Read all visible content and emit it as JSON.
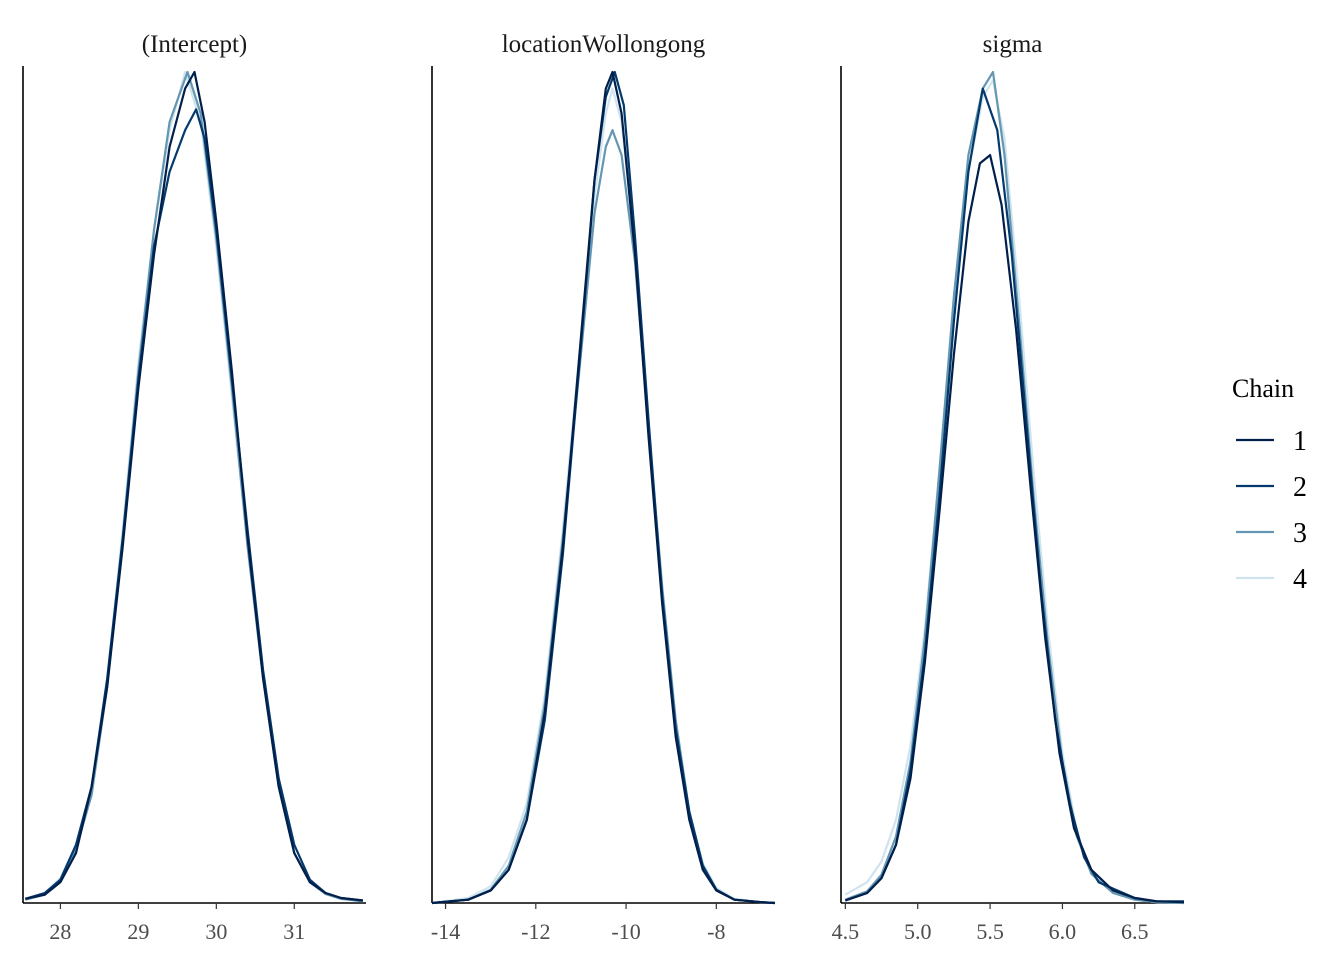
{
  "chart_data": {
    "type": "line",
    "legend": {
      "title": "Chain",
      "position": "right",
      "entries": [
        "1",
        "2",
        "3",
        "4"
      ]
    },
    "colors": [
      "#011f4b",
      "#03396c",
      "#6497b1",
      "#d0e4ef"
    ],
    "grid": false,
    "panels": [
      {
        "title": "(Intercept)",
        "xlim": [
          27.52,
          31.92
        ],
        "ticks": [
          28,
          29,
          30,
          31
        ],
        "tick_labels": [
          "28",
          "29",
          "30",
          "31"
        ],
        "series": [
          {
            "name": "1",
            "x": [
              27.55,
              27.8,
              28.0,
              28.2,
              28.4,
              28.6,
              28.8,
              29.0,
              29.2,
              29.4,
              29.6,
              29.72,
              29.85,
              30.0,
              30.2,
              30.4,
              30.6,
              30.8,
              31.0,
              31.2,
              31.4,
              31.6,
              31.88
            ],
            "y": [
              0.005,
              0.01,
              0.025,
              0.06,
              0.14,
              0.26,
              0.43,
              0.62,
              0.78,
              0.91,
              0.98,
              1.0,
              0.94,
              0.82,
              0.64,
              0.44,
              0.27,
              0.14,
              0.06,
              0.025,
              0.012,
              0.006,
              0.003
            ]
          },
          {
            "name": "2",
            "x": [
              27.55,
              27.8,
              28.0,
              28.2,
              28.4,
              28.6,
              28.8,
              29.0,
              29.2,
              29.4,
              29.6,
              29.74,
              29.85,
              30.0,
              30.2,
              30.4,
              30.6,
              30.8,
              31.0,
              31.2,
              31.4,
              31.6,
              31.88
            ],
            "y": [
              0.005,
              0.012,
              0.028,
              0.07,
              0.14,
              0.27,
              0.44,
              0.63,
              0.79,
              0.88,
              0.93,
              0.955,
              0.92,
              0.81,
              0.63,
              0.45,
              0.28,
              0.15,
              0.07,
              0.028,
              0.012,
              0.006,
              0.003
            ]
          },
          {
            "name": "3",
            "x": [
              27.55,
              27.8,
              28.0,
              28.2,
              28.4,
              28.6,
              28.8,
              29.0,
              29.2,
              29.4,
              29.63,
              29.8,
              30.0,
              30.2,
              30.4,
              30.6,
              30.8,
              31.0,
              31.2,
              31.4,
              31.6,
              31.88
            ],
            "y": [
              0.004,
              0.01,
              0.027,
              0.065,
              0.13,
              0.26,
              0.44,
              0.64,
              0.81,
              0.94,
              1.0,
              0.95,
              0.8,
              0.62,
              0.43,
              0.27,
              0.14,
              0.06,
              0.025,
              0.011,
              0.005,
              0.002
            ]
          },
          {
            "name": "4",
            "x": [
              27.55,
              27.8,
              28.0,
              28.2,
              28.4,
              28.6,
              28.8,
              29.0,
              29.2,
              29.4,
              29.6,
              29.8,
              30.0,
              30.2,
              30.4,
              30.6,
              30.8,
              31.0,
              31.2,
              31.4,
              31.6,
              31.88
            ],
            "y": [
              0.005,
              0.012,
              0.03,
              0.07,
              0.14,
              0.27,
              0.45,
              0.65,
              0.81,
              0.93,
              1.0,
              0.94,
              0.79,
              0.61,
              0.43,
              0.27,
              0.14,
              0.06,
              0.025,
              0.011,
              0.005,
              0.002
            ]
          }
        ]
      },
      {
        "title": "locationWollongong",
        "xlim": [
          -14.3,
          -6.7
        ],
        "ticks": [
          -14,
          -12,
          -10,
          -8
        ],
        "tick_labels": [
          "-14",
          "-12",
          "-10",
          "-8"
        ],
        "series": [
          {
            "name": "1",
            "x": [
              -14.3,
              -13.5,
              -13.0,
              -12.6,
              -12.2,
              -11.8,
              -11.4,
              -11.0,
              -10.7,
              -10.45,
              -10.3,
              -10.1,
              -9.8,
              -9.5,
              -9.2,
              -8.9,
              -8.6,
              -8.3,
              -8.0,
              -7.6,
              -7.0,
              -6.7
            ],
            "y": [
              0.0,
              0.004,
              0.015,
              0.04,
              0.1,
              0.23,
              0.43,
              0.68,
              0.87,
              0.98,
              1.0,
              0.95,
              0.78,
              0.56,
              0.36,
              0.2,
              0.1,
              0.04,
              0.015,
              0.004,
              0.001,
              0.0
            ]
          },
          {
            "name": "2",
            "x": [
              -14.3,
              -13.5,
              -13.0,
              -12.6,
              -12.2,
              -11.8,
              -11.4,
              -11.0,
              -10.7,
              -10.45,
              -10.25,
              -10.05,
              -9.8,
              -9.5,
              -9.2,
              -8.9,
              -8.6,
              -8.3,
              -8.0,
              -7.6,
              -7.0,
              -6.7
            ],
            "y": [
              0.0,
              0.004,
              0.015,
              0.04,
              0.1,
              0.22,
              0.42,
              0.67,
              0.87,
              0.97,
              1.0,
              0.96,
              0.8,
              0.58,
              0.37,
              0.21,
              0.11,
              0.045,
              0.016,
              0.004,
              0.001,
              0.0
            ]
          },
          {
            "name": "3",
            "x": [
              -14.3,
              -13.5,
              -13.0,
              -12.6,
              -12.2,
              -11.8,
              -11.4,
              -11.0,
              -10.7,
              -10.45,
              -10.3,
              -10.1,
              -9.8,
              -9.5,
              -9.2,
              -8.9,
              -8.6,
              -8.3,
              -8.0,
              -7.6,
              -7.0,
              -6.7
            ],
            "y": [
              0.0,
              0.004,
              0.016,
              0.045,
              0.11,
              0.24,
              0.44,
              0.66,
              0.83,
              0.91,
              0.93,
              0.9,
              0.77,
              0.57,
              0.38,
              0.22,
              0.11,
              0.045,
              0.016,
              0.004,
              0.001,
              0.0
            ]
          },
          {
            "name": "4",
            "x": [
              -14.3,
              -13.5,
              -13.0,
              -12.6,
              -12.2,
              -11.8,
              -11.4,
              -11.0,
              -10.7,
              -10.45,
              -10.3,
              -10.1,
              -9.8,
              -9.5,
              -9.2,
              -8.9,
              -8.6,
              -8.3,
              -8.0,
              -7.6,
              -7.0,
              -6.7
            ],
            "y": [
              0.0,
              0.006,
              0.02,
              0.055,
              0.12,
              0.25,
              0.45,
              0.68,
              0.85,
              0.95,
              0.98,
              0.94,
              0.79,
              0.58,
              0.38,
              0.22,
              0.11,
              0.048,
              0.018,
              0.005,
              0.001,
              0.0
            ]
          }
        ]
      },
      {
        "title": "sigma",
        "xlim": [
          4.47,
          6.84
        ],
        "ticks": [
          4.5,
          5.0,
          5.5,
          6.0,
          6.5
        ],
        "tick_labels": [
          "4.5",
          "5.0",
          "5.5",
          "6.0",
          "6.5"
        ],
        "series": [
          {
            "name": "1",
            "x": [
              4.5,
              4.65,
              4.75,
              4.85,
              4.95,
              5.05,
              5.15,
              5.25,
              5.35,
              5.43,
              5.5,
              5.58,
              5.68,
              5.78,
              5.88,
              5.98,
              6.08,
              6.2,
              6.35,
              6.5,
              6.65,
              6.84
            ],
            "y": [
              0.003,
              0.012,
              0.03,
              0.07,
              0.15,
              0.29,
              0.47,
              0.66,
              0.82,
              0.89,
              0.9,
              0.84,
              0.69,
              0.5,
              0.32,
              0.18,
              0.09,
              0.04,
              0.015,
              0.006,
              0.002,
              0.001
            ]
          },
          {
            "name": "2",
            "x": [
              4.5,
              4.65,
              4.75,
              4.85,
              4.95,
              5.05,
              5.15,
              5.25,
              5.35,
              5.45,
              5.55,
              5.65,
              5.75,
              5.85,
              5.95,
              6.05,
              6.15,
              6.25,
              6.38,
              6.5,
              6.65,
              6.84
            ],
            "y": [
              0.003,
              0.012,
              0.03,
              0.07,
              0.16,
              0.3,
              0.49,
              0.7,
              0.88,
              0.98,
              0.93,
              0.78,
              0.58,
              0.38,
              0.22,
              0.12,
              0.055,
              0.025,
              0.015,
              0.006,
              0.002,
              0.002
            ]
          },
          {
            "name": "3",
            "x": [
              4.5,
              4.65,
              4.75,
              4.85,
              4.95,
              5.05,
              5.15,
              5.25,
              5.35,
              5.45,
              5.52,
              5.6,
              5.7,
              5.8,
              5.9,
              6.0,
              6.1,
              6.2,
              6.35,
              6.5,
              6.65,
              6.84
            ],
            "y": [
              0.004,
              0.014,
              0.034,
              0.08,
              0.17,
              0.32,
              0.52,
              0.73,
              0.9,
              0.98,
              1.0,
              0.9,
              0.7,
              0.49,
              0.31,
              0.17,
              0.08,
              0.035,
              0.012,
              0.004,
              0.001,
              0.0
            ]
          },
          {
            "name": "4",
            "x": [
              4.5,
              4.65,
              4.75,
              4.85,
              4.95,
              5.05,
              5.15,
              5.25,
              5.35,
              5.45,
              5.52,
              5.6,
              5.7,
              5.8,
              5.9,
              6.0,
              6.1,
              6.2,
              6.35,
              6.5,
              6.65,
              6.84
            ],
            "y": [
              0.01,
              0.025,
              0.05,
              0.1,
              0.19,
              0.33,
              0.52,
              0.72,
              0.88,
              0.97,
              0.99,
              0.92,
              0.73,
              0.52,
              0.33,
              0.18,
              0.085,
              0.037,
              0.013,
              0.004,
              0.001,
              0.0
            ]
          }
        ]
      }
    ]
  }
}
